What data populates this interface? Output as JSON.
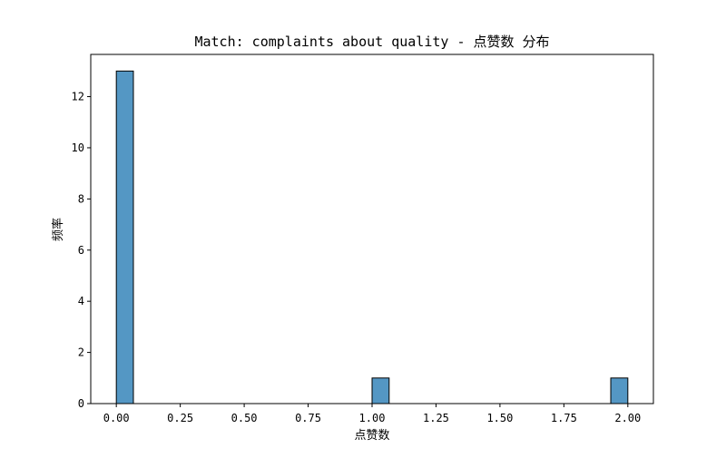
{
  "chart_data": {
    "type": "bar",
    "title": "Match: complaints about quality - 点赞数 分布",
    "xlabel": "点赞数",
    "ylabel": "频率",
    "xlim": [
      -0.1,
      2.1
    ],
    "ylim": [
      0,
      13.65
    ],
    "xticks": [
      0.0,
      0.25,
      0.5,
      0.75,
      1.0,
      1.25,
      1.5,
      1.75,
      2.0
    ],
    "xtick_labels": [
      "0.00",
      "0.25",
      "0.50",
      "0.75",
      "1.00",
      "1.25",
      "1.50",
      "1.75",
      "2.00"
    ],
    "yticks": [
      0,
      2,
      4,
      6,
      8,
      10,
      12
    ],
    "ytick_labels": [
      "0",
      "2",
      "4",
      "6",
      "8",
      "10",
      "12"
    ],
    "bar_color": "#5497c4",
    "bar_edge_color": "#000000",
    "grid": false,
    "bins": [
      {
        "x_start": 0.0,
        "x_end": 0.0667,
        "count": 13
      },
      {
        "x_start": 1.0,
        "x_end": 1.0667,
        "count": 1
      },
      {
        "x_start": 1.9333,
        "x_end": 2.0,
        "count": 1
      }
    ]
  }
}
